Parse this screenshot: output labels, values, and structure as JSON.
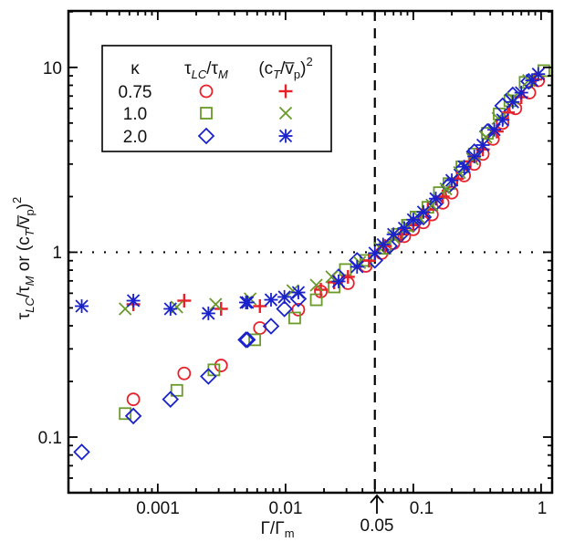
{
  "chart_data": {
    "type": "scatter",
    "title": "",
    "xlabel": "Γ/Γ",
    "xlabel_sub": "m",
    "ylabel_parts": {
      "tau": "τ",
      "lc": "LC",
      "slash": "/",
      "m": "M",
      "or": " or (c",
      "t": "T",
      "vbar": "/v̅",
      "p": "p",
      "close": ")",
      "sq": "2"
    },
    "xscale": "log",
    "yscale": "log",
    "xlim": [
      0.0002,
      1.22
    ],
    "ylim": [
      0.05,
      20.2
    ],
    "xticks": [
      {
        "value": 0.001,
        "label": "0.001"
      },
      {
        "value": 0.01,
        "label": "0.01"
      },
      {
        "value": 0.1,
        "label": "0.1"
      },
      {
        "value": 1,
        "label": "1"
      }
    ],
    "yticks": [
      {
        "value": 0.1,
        "label": "0.1"
      },
      {
        "value": 1,
        "label": "1"
      },
      {
        "value": 10,
        "label": "10"
      }
    ],
    "reference_lines": {
      "vertical_dashed_x": 0.05,
      "horizontal_dotted_y": 1,
      "annotation": {
        "label": "0.05",
        "arrow": "up",
        "x": 0.05
      }
    },
    "legend": {
      "position": "top-left",
      "headers": {
        "kappa": "κ",
        "col1_tau": "τ",
        "col1_lc": "LC",
        "col1_slash": "/",
        "col1_tau2": "τ",
        "col1_m": "M",
        "col2_open": "(c",
        "col2_t": "T",
        "col2_slash": "/",
        "col2_v": "v̅",
        "col2_p": "p",
        "col2_close": ")",
        "col2_sq": "2"
      },
      "rows": [
        {
          "kappa": "0.75",
          "marker1": "circle",
          "marker2": "plus",
          "color": "#e8202a"
        },
        {
          "kappa": "1.0",
          "marker1": "square",
          "marker2": "cross",
          "color": "#6a9a2a"
        },
        {
          "kappa": "2.0",
          "marker1": "diamond",
          "marker2": "asterisk",
          "color": "#1a22cc"
        }
      ]
    },
    "series": [
      {
        "name": "tauLC/tauM kappa=0.75",
        "marker": "circle",
        "color": "#e8202a",
        "points": [
          [
            0.000644,
            0.16
          ],
          [
            0.00161,
            0.221
          ],
          [
            0.00313,
            0.244
          ],
          [
            0.0063,
            0.389
          ],
          [
            0.0126,
            0.489
          ],
          [
            0.0189,
            0.613
          ],
          [
            0.0308,
            0.68
          ],
          [
            0.0425,
            0.843
          ],
          [
            0.0565,
            0.989
          ],
          [
            0.07,
            1.12
          ],
          [
            0.085,
            1.22
          ],
          [
            0.1,
            1.33
          ],
          [
            0.12,
            1.45
          ],
          [
            0.14,
            1.6
          ],
          [
            0.17,
            1.85
          ],
          [
            0.2,
            2.1
          ],
          [
            0.25,
            2.6
          ],
          [
            0.3,
            3.0
          ],
          [
            0.35,
            3.4
          ],
          [
            0.42,
            4.1
          ],
          [
            0.5,
            5.0
          ],
          [
            0.63,
            6.0
          ],
          [
            0.81,
            7.3
          ],
          [
            0.95,
            8.5
          ]
        ]
      },
      {
        "name": "tauLC/tauM kappa=1.0",
        "marker": "square",
        "color": "#6a9a2a",
        "points": [
          [
            0.000556,
            0.134
          ],
          [
            0.00141,
            0.179
          ],
          [
            0.00275,
            0.231
          ],
          [
            0.00574,
            0.336
          ],
          [
            0.0118,
            0.441
          ],
          [
            0.0174,
            0.553
          ],
          [
            0.024,
            0.649
          ],
          [
            0.0294,
            0.806
          ],
          [
            0.0425,
            0.903
          ],
          [
            0.06,
            1.05
          ],
          [
            0.075,
            1.25
          ],
          [
            0.09,
            1.4
          ],
          [
            0.105,
            1.55
          ],
          [
            0.13,
            1.75
          ],
          [
            0.16,
            2.1
          ],
          [
            0.19,
            2.35
          ],
          [
            0.24,
            2.9
          ],
          [
            0.3,
            3.4
          ],
          [
            0.38,
            4.4
          ],
          [
            0.47,
            5.6
          ],
          [
            0.57,
            6.6
          ],
          [
            0.75,
            8.3
          ],
          [
            1.05,
            9.6
          ]
        ]
      },
      {
        "name": "tauLC/tauM kappa=2.0",
        "marker": "diamond",
        "color": "#1a22cc",
        "points": [
          [
            0.000254,
            0.083
          ],
          [
            0.000644,
            0.13
          ],
          [
            0.001257,
            0.16
          ],
          [
            0.00249,
            0.213
          ],
          [
            0.0049,
            0.336
          ],
          [
            0.00504,
            0.336
          ],
          [
            0.0077,
            0.398
          ],
          [
            0.0098,
            0.494
          ],
          [
            0.0126,
            0.56
          ],
          [
            0.026,
            0.736
          ],
          [
            0.0363,
            0.903
          ],
          [
            0.05,
            0.903
          ],
          [
            0.065,
            1.08
          ],
          [
            0.08,
            1.25
          ],
          [
            0.1,
            1.42
          ],
          [
            0.12,
            1.55
          ],
          [
            0.15,
            1.85
          ],
          [
            0.19,
            2.3
          ],
          [
            0.24,
            2.8
          ],
          [
            0.3,
            3.5
          ],
          [
            0.38,
            4.5
          ],
          [
            0.5,
            6.2
          ],
          [
            0.6,
            7.1
          ],
          [
            0.8,
            8.4
          ]
        ]
      },
      {
        "name": "(cT/vp)^2 kappa=0.75",
        "marker": "plus",
        "color": "#e8202a",
        "points": [
          [
            0.000644,
            0.523
          ],
          [
            0.00161,
            0.547
          ],
          [
            0.00313,
            0.494
          ],
          [
            0.0063,
            0.511
          ],
          [
            0.0189,
            0.627
          ],
          [
            0.024,
            0.687
          ],
          [
            0.0308,
            0.736
          ],
          [
            0.045,
            0.9
          ],
          [
            0.06,
            1.08
          ],
          [
            0.08,
            1.25
          ],
          [
            0.1,
            1.4
          ],
          [
            0.13,
            1.7
          ],
          [
            0.17,
            2.0
          ],
          [
            0.22,
            2.5
          ],
          [
            0.28,
            3.1
          ],
          [
            0.35,
            3.6
          ],
          [
            0.45,
            4.5
          ],
          [
            0.55,
            5.7
          ],
          [
            0.7,
            6.9
          ],
          [
            0.9,
            8.6
          ]
        ]
      },
      {
        "name": "(cT/vp)^2 kappa=1.0",
        "marker": "cross",
        "color": "#6a9a2a",
        "points": [
          [
            0.000556,
            0.494
          ],
          [
            0.00141,
            0.505
          ],
          [
            0.00284,
            0.523
          ],
          [
            0.00529,
            0.56
          ],
          [
            0.0114,
            0.62
          ],
          [
            0.0174,
            0.664
          ],
          [
            0.023,
            0.736
          ],
          [
            0.038,
            0.88
          ],
          [
            0.055,
            1.05
          ],
          [
            0.07,
            1.2
          ],
          [
            0.09,
            1.38
          ],
          [
            0.11,
            1.55
          ],
          [
            0.14,
            1.8
          ],
          [
            0.18,
            2.2
          ],
          [
            0.23,
            2.7
          ],
          [
            0.29,
            3.2
          ],
          [
            0.37,
            4.2
          ],
          [
            0.46,
            5.3
          ],
          [
            0.6,
            6.8
          ],
          [
            0.8,
            8.5
          ]
        ]
      },
      {
        "name": "(cT/vp)^2 kappa=2.0",
        "marker": "asterisk",
        "color": "#1a22cc",
        "points": [
          [
            0.000254,
            0.511
          ],
          [
            0.000644,
            0.547
          ],
          [
            0.001257,
            0.494
          ],
          [
            0.00249,
            0.467
          ],
          [
            0.0049,
            0.535
          ],
          [
            0.00504,
            0.535
          ],
          [
            0.0077,
            0.553
          ],
          [
            0.0098,
            0.573
          ],
          [
            0.0126,
            0.606
          ],
          [
            0.026,
            0.695
          ],
          [
            0.0363,
            0.834
          ],
          [
            0.05,
            0.989
          ],
          [
            0.058,
            1.1
          ],
          [
            0.07,
            1.25
          ],
          [
            0.085,
            1.35
          ],
          [
            0.1,
            1.5
          ],
          [
            0.12,
            1.65
          ],
          [
            0.15,
            1.95
          ],
          [
            0.2,
            2.45
          ],
          [
            0.25,
            2.9
          ],
          [
            0.3,
            3.3
          ],
          [
            0.35,
            3.8
          ],
          [
            0.43,
            4.6
          ],
          [
            0.5,
            5.2
          ],
          [
            0.6,
            6.5
          ],
          [
            0.7,
            7.3
          ],
          [
            0.85,
            8.5
          ],
          [
            0.95,
            9.2
          ]
        ]
      }
    ]
  }
}
